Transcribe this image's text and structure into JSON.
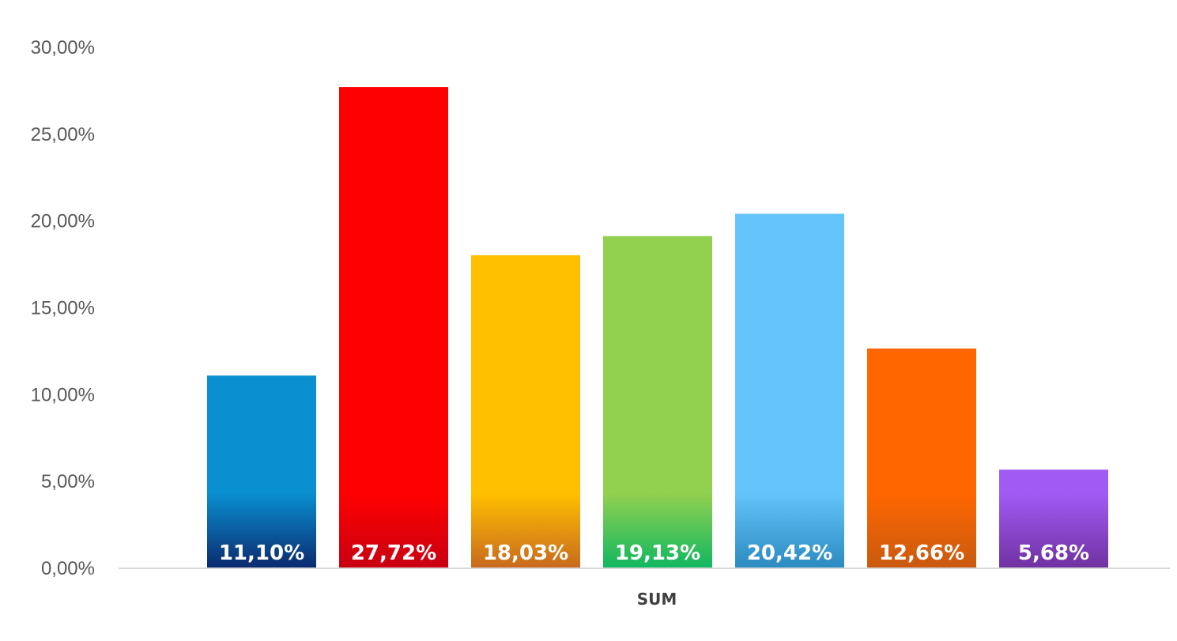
{
  "chart_data": {
    "type": "bar",
    "categories": [
      "SUM"
    ],
    "series": [
      {
        "value": 11.1,
        "label": "11,10%",
        "color": "#0a8fd0",
        "dark": "#0b2a6e"
      },
      {
        "value": 27.72,
        "label": "27,72%",
        "color": "#ff0000",
        "dark": "#c80012"
      },
      {
        "value": 18.03,
        "label": "18,03%",
        "color": "#ffc000",
        "dark": "#c8691e"
      },
      {
        "value": 19.13,
        "label": "19,13%",
        "color": "#92d050",
        "dark": "#10b760"
      },
      {
        "value": 20.42,
        "label": "20,42%",
        "color": "#63c5fc",
        "dark": "#2b8ac0"
      },
      {
        "value": 12.66,
        "label": "12,66%",
        "color": "#ff6600",
        "dark": "#c95a10"
      },
      {
        "value": 5.68,
        "label": "5,68%",
        "color": "#a05bf5",
        "dark": "#7031a0"
      }
    ],
    "ylim": [
      0,
      30
    ],
    "yticks": [
      {
        "value": 0,
        "label": "0,00%"
      },
      {
        "value": 5,
        "label": "5,00%"
      },
      {
        "value": 10,
        "label": "10,00%"
      },
      {
        "value": 15,
        "label": "15,00%"
      },
      {
        "value": 20,
        "label": "20,00%"
      },
      {
        "value": 25,
        "label": "25,00%"
      },
      {
        "value": 30,
        "label": "30,00%"
      }
    ],
    "grid": false,
    "axis_color": "#d9d9d9",
    "tick_color": "#595959"
  }
}
